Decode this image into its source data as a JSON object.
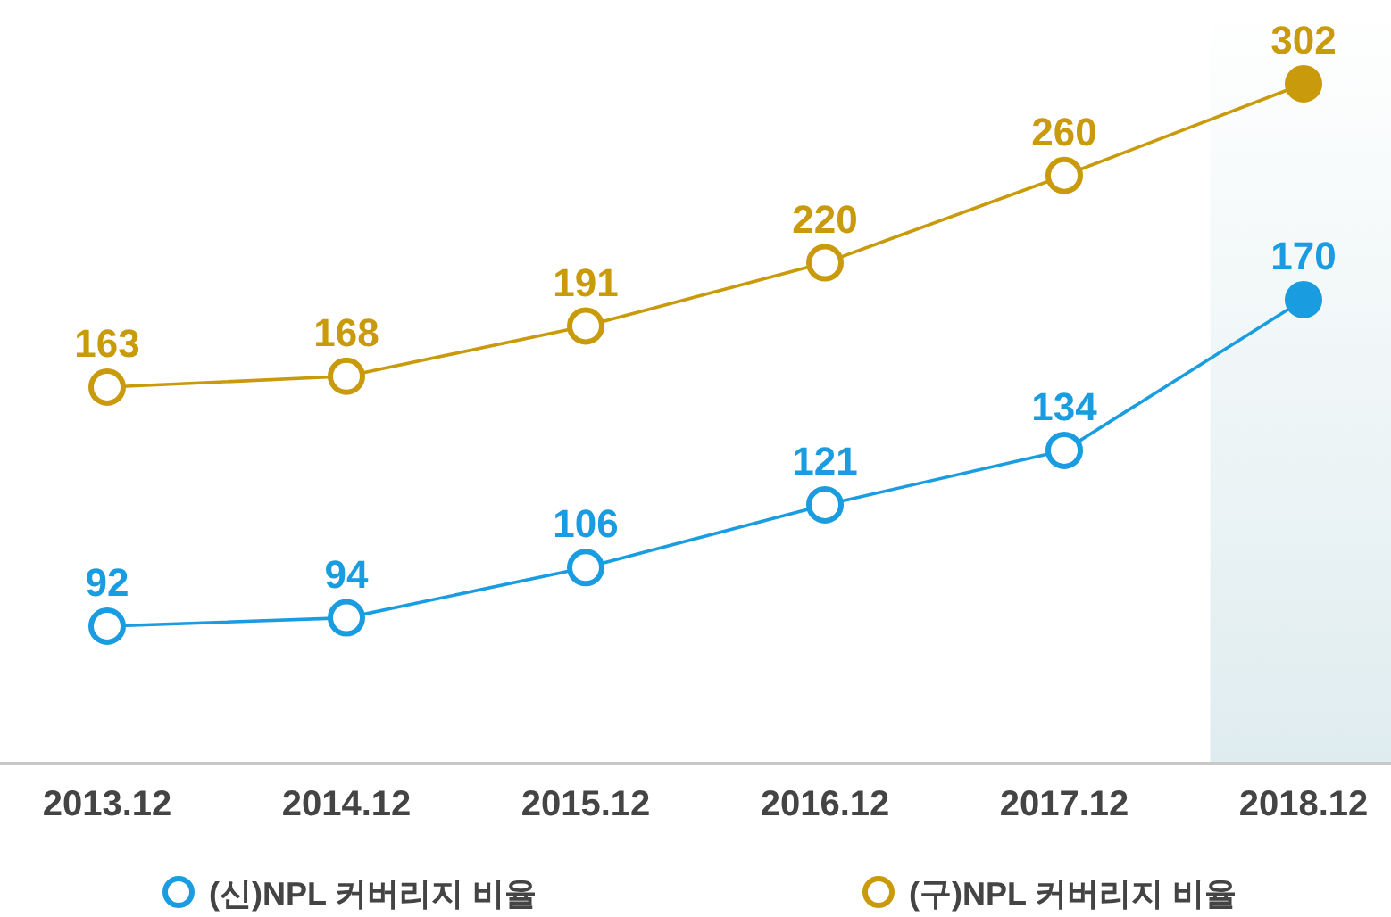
{
  "chart_data": {
    "type": "line",
    "categories": [
      "2013.12",
      "2014.12",
      "2015.12",
      "2016.12",
      "2017.12",
      "2018.12"
    ],
    "series": [
      {
        "name": "(신)NPL 커버리지 비율",
        "color": "#1a9de0",
        "values": [
          92,
          94,
          106,
          121,
          134,
          170
        ]
      },
      {
        "name": "(구)NPL 커버리지 비율",
        "color": "#c99a0c",
        "axis": "y2",
        "values": [
          163,
          168,
          191,
          220,
          260,
          302
        ]
      }
    ],
    "bands": [
      {
        "axis": "x",
        "from": "2018.12",
        "to": "2018.12",
        "color": "#dfecef"
      }
    ],
    "data_labels": true,
    "marker": "circle",
    "line_style": "solid",
    "legend": "bottom"
  }
}
